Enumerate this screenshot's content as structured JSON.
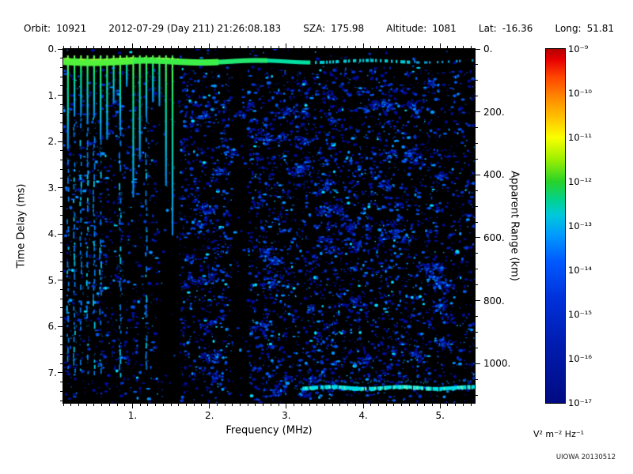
{
  "header": {
    "fields": [
      {
        "label": "Orbit:",
        "value": "10921"
      },
      {
        "label": "",
        "value": "2012-07-29 (Day 211) 21:26:08.183"
      },
      {
        "label": "SZA:",
        "value": "175.98"
      },
      {
        "label": "Altitude:",
        "value": "1081"
      },
      {
        "label": "Lat:",
        "value": "-16.36"
      },
      {
        "label": "Long:",
        "value": "51.81"
      }
    ]
  },
  "chart_data": {
    "type": "heatmap",
    "title": "",
    "xlabel": "Frequency (MHz)",
    "ylabel": "Time Delay (ms)",
    "ylabel_right": "Apparent Range (km)",
    "x_range_mhz": [
      0.1,
      5.45
    ],
    "y_range_ms": [
      0.0,
      7.65
    ],
    "right_range_km": [
      0,
      1125
    ],
    "x_ticks": {
      "values": [
        1,
        2,
        3,
        4,
        5
      ],
      "labels": [
        "1.",
        "2.",
        "3.",
        "4.",
        "5."
      ],
      "minor_step": 0.1
    },
    "y_ticks": {
      "values": [
        0,
        1,
        2,
        3,
        4,
        5,
        6,
        7
      ],
      "labels": [
        "0.",
        "1.",
        "2.",
        "3.",
        "4.",
        "5.",
        "6.",
        "7."
      ],
      "minor_step": 0.2
    },
    "right_ticks": {
      "values": [
        0,
        200,
        400,
        600,
        800,
        1000
      ],
      "labels": [
        "0.",
        "200.",
        "400.",
        "600.",
        "800.",
        "1000."
      ],
      "minor_step": 50
    },
    "colorbar": {
      "scale": "log10",
      "range_exponents": [
        -9,
        -17
      ],
      "tick_labels": [
        "10⁻⁹",
        "10⁻¹⁰",
        "10⁻¹¹",
        "10⁻¹²",
        "10⁻¹³",
        "10⁻¹⁴",
        "10⁻¹⁵",
        "10⁻¹⁶",
        "10⁻¹⁷"
      ],
      "units": "V² m⁻² Hz⁻¹",
      "gradient": [
        {
          "pos": 0.0,
          "color": "#b40000"
        },
        {
          "pos": 0.03,
          "color": "#e60000"
        },
        {
          "pos": 0.08,
          "color": "#ff4600"
        },
        {
          "pos": 0.14,
          "color": "#ff8c00"
        },
        {
          "pos": 0.2,
          "color": "#ffc800"
        },
        {
          "pos": 0.25,
          "color": "#faff00"
        },
        {
          "pos": 0.31,
          "color": "#a0f000"
        },
        {
          "pos": 0.375,
          "color": "#28d228"
        },
        {
          "pos": 0.43,
          "color": "#00d296"
        },
        {
          "pos": 0.47,
          "color": "#00c8dc"
        },
        {
          "pos": 0.53,
          "color": "#0096ff"
        },
        {
          "pos": 0.6,
          "color": "#005aff"
        },
        {
          "pos": 0.7,
          "color": "#0032dc"
        },
        {
          "pos": 0.82,
          "color": "#001eb4"
        },
        {
          "pos": 1.0,
          "color": "#000a82"
        }
      ]
    },
    "features": {
      "background_color": "#000000",
      "noise_seed": 20130512,
      "speckle_palette": [
        {
          "color": "#000d96",
          "w": 0.5
        },
        {
          "color": "#0031c8",
          "w": 0.25
        },
        {
          "color": "#0057e8",
          "w": 0.13
        },
        {
          "color": "#0092ff",
          "w": 0.085
        },
        {
          "color": "#00d9ff",
          "w": 0.035
        }
      ],
      "ionosphere_echo_band": {
        "description": "bright horizontal ionospheric echo near 0.3 ms delay; solid green below ~3.3 MHz, patchy cyan/blue to 5.45 MHz",
        "delay_ms": 0.27,
        "freq_full_to_mhz": 3.3,
        "colors": {
          "left": "#3dee49",
          "bright_left": "#52f23c",
          "mid": "#22e76e",
          "teal": "#00dfa2",
          "cyan": "#00c9d4",
          "right": "#0b97cf"
        }
      },
      "electron_plasma_harmonics": {
        "description": "vertical green/cyan plasma-oscillation harmonic spikes at low frequency",
        "start_mhz": 0.16,
        "spacing_mhz": 0.085,
        "count": 17,
        "full_depth_count": 6,
        "deep_indices": [
          8,
          12
        ],
        "gradient": [
          "#66ff44",
          "#00e87c",
          "#00bfd8",
          "#0080e0"
        ]
      },
      "surface_reflection": {
        "description": "cyan surface-reflection band near 7.3 ms delay from ~3.2 to 5.45 MHz",
        "delay_ms": 7.32,
        "freq_start_mhz": 3.2,
        "freq_end_mhz": 5.45,
        "color": "#00dce6",
        "bright_color": "#4df0c8"
      },
      "absorption_gaps_mhz": [
        [
          2.28,
          2.5
        ],
        [
          1.32,
          1.6
        ]
      ]
    },
    "watermark": "UIOWA 20130512"
  }
}
